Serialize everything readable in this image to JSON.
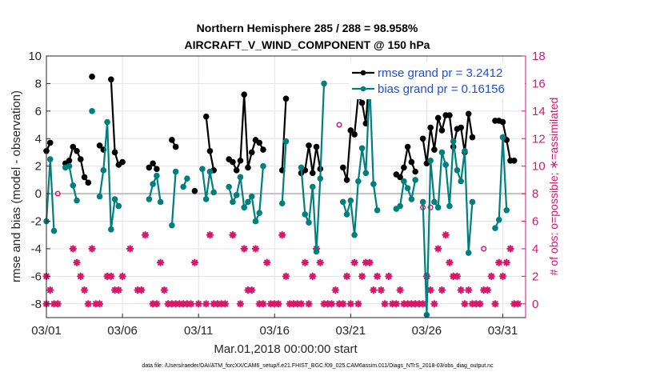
{
  "chart_data": {
    "type": "line",
    "title_line1": "Northern Hemisphere 285 / 288 = 98.958%",
    "title_line2": "AIRCRAFT_V_WIND_COMPONENT @ 150 hPa",
    "xlabel": "Mar.01,2018 00:00:00 start",
    "ylabel_left": "rmse and bias (model - observation)",
    "ylabel_right": "# of obs: o=possible; ∗=assimilated",
    "footer": "data file: /Users/raeder/DAI/ATM_forcXX/CAM6_setup/f.e21.FHIST_BGC.f09_025.CAM6assim.011/Diags_NTrS_2018-03/obs_diag_output.nc",
    "xlim": [
      1,
      32.5
    ],
    "ylim_left": [
      -9,
      10
    ],
    "ylim_right": [
      -1,
      18
    ],
    "xticks": [
      1,
      6,
      11,
      16,
      21,
      26,
      31
    ],
    "xtick_labels": [
      "03/01",
      "03/06",
      "03/11",
      "03/16",
      "03/21",
      "03/26",
      "03/31"
    ],
    "yticks_left": [
      -8,
      -6,
      -4,
      -2,
      0,
      2,
      4,
      6,
      8,
      10
    ],
    "yticks_right": [
      0,
      2,
      4,
      6,
      8,
      10,
      12,
      14,
      16,
      18
    ],
    "grid": true,
    "legend_placement": "top-right",
    "colors": {
      "rmse": "#000000",
      "bias": "#007f7f",
      "obs": "#d6186b",
      "zero_line": "#c0c0c0"
    },
    "series": [
      {
        "name": "rmse grand pr = 3.2412",
        "axis": "left",
        "segments": [
          [
            [
              1.0,
              3.1
            ],
            [
              1.25,
              3.7
            ]
          ],
          [
            [
              2.25,
              2.2
            ],
            [
              2.5,
              2.4
            ],
            [
              2.75,
              3.4
            ],
            [
              3.0,
              3.1
            ],
            [
              3.25,
              2.5
            ],
            [
              3.5,
              1.2
            ],
            [
              3.75,
              0.8
            ]
          ],
          [
            [
              4.0,
              8.5
            ]
          ],
          [
            [
              4.5,
              3.5
            ],
            [
              4.75,
              3.2
            ]
          ],
          [
            [
              5.25,
              8.3
            ],
            [
              5.5,
              3.0
            ],
            [
              5.75,
              2.1
            ],
            [
              6.0,
              2.3
            ]
          ],
          [
            [
              7.75,
              1.9
            ],
            [
              8.0,
              2.2
            ],
            [
              8.25,
              1.8
            ]
          ],
          [
            [
              9.25,
              3.9
            ],
            [
              9.5,
              3.4
            ]
          ],
          [
            [
              10.75,
              0.2
            ]
          ],
          [
            [
              11.5,
              5.6
            ],
            [
              11.75,
              3.1
            ],
            [
              12.0,
              1.7
            ]
          ],
          [
            [
              13.0,
              2.5
            ],
            [
              13.25,
              2.3
            ],
            [
              13.5,
              1.7
            ],
            [
              13.75,
              2.4
            ],
            [
              14.0,
              7.2
            ],
            [
              14.25,
              1.9
            ],
            [
              14.5,
              3.0
            ],
            [
              14.75,
              3.9
            ],
            [
              15.0,
              3.7
            ],
            [
              15.25,
              3.2
            ]
          ],
          [
            [
              16.5,
              1.7
            ],
            [
              16.75,
              6.9
            ]
          ],
          [
            [
              17.75,
              1.5
            ],
            [
              18.0,
              1.7
            ],
            [
              18.25,
              3.5
            ],
            [
              18.5,
              1.5
            ],
            [
              18.75,
              3.4
            ],
            [
              19.0,
              1.8
            ]
          ],
          [
            [
              20.5,
              1.9
            ],
            [
              20.75,
              1.0
            ],
            [
              21.0,
              4.6
            ],
            [
              21.25,
              4.3
            ],
            [
              21.5,
              7.1
            ],
            [
              21.75,
              6.6
            ],
            [
              22.0,
              5.1
            ],
            [
              22.25,
              9.0
            ],
            [
              22.5,
              7.5
            ],
            [
              22.75,
              7.2
            ]
          ],
          [
            [
              24.0,
              1.4
            ],
            [
              24.25,
              1.2
            ],
            [
              24.5,
              1.9
            ],
            [
              24.75,
              3.4
            ],
            [
              25.0,
              2.3
            ],
            [
              25.25,
              1.6
            ]
          ],
          [
            [
              25.75,
              4.0
            ],
            [
              26.0,
              2.2
            ],
            [
              26.25,
              4.8
            ],
            [
              26.5,
              3.2
            ],
            [
              26.75,
              5.5
            ],
            [
              27.0,
              4.6
            ],
            [
              27.25,
              5.7
            ],
            [
              27.5,
              5.7
            ],
            [
              27.75,
              3.4
            ],
            [
              28.0,
              4.7
            ],
            [
              28.25,
              4.8
            ],
            [
              28.5,
              3.0
            ],
            [
              28.75,
              5.8
            ],
            [
              29.0,
              4.1
            ]
          ],
          [
            [
              30.5,
              5.3
            ],
            [
              30.75,
              5.3
            ],
            [
              31.0,
              5.2
            ],
            [
              31.25,
              3.9
            ],
            [
              31.5,
              2.4
            ],
            [
              31.75,
              2.4
            ]
          ]
        ]
      },
      {
        "name": "bias grand pr = 0.16156",
        "axis": "left",
        "segments": [
          [
            [
              1.0,
              -2.0
            ],
            [
              1.25,
              2.5
            ],
            [
              1.5,
              -2.7
            ]
          ],
          [
            [
              2.25,
              1.9
            ],
            [
              2.5,
              2.0
            ],
            [
              2.75,
              0.6
            ],
            [
              3.0,
              -0.5
            ]
          ],
          [
            [
              4.0,
              6.0
            ]
          ],
          [
            [
              4.5,
              -0.2
            ],
            [
              4.75,
              1.7
            ],
            [
              5.0,
              5.2
            ],
            [
              5.25,
              -2.6
            ],
            [
              5.5,
              -0.4
            ],
            [
              5.75,
              -0.9
            ]
          ],
          [
            [
              7.75,
              -0.4
            ],
            [
              8.0,
              0.7
            ],
            [
              8.25,
              1.3
            ],
            [
              8.5,
              -0.6
            ]
          ],
          [
            [
              9.25,
              -2.3
            ],
            [
              9.5,
              1.6
            ]
          ],
          [
            [
              10.0,
              0.5
            ],
            [
              10.25,
              1.1
            ]
          ],
          [
            [
              11.25,
              1.8
            ],
            [
              11.5,
              -0.4
            ],
            [
              11.75,
              1.6
            ],
            [
              12.0,
              0.1
            ]
          ],
          [
            [
              13.0,
              0.5
            ],
            [
              13.25,
              -0.6
            ],
            [
              13.5,
              -0.1
            ],
            [
              13.75,
              1.2
            ],
            [
              14.0,
              -1.0
            ],
            [
              14.25,
              -0.6
            ],
            [
              14.5,
              -0.2
            ],
            [
              14.75,
              -2.0
            ],
            [
              15.0,
              -1.4
            ],
            [
              15.25,
              2.0
            ]
          ],
          [
            [
              16.5,
              -0.7
            ],
            [
              16.75,
              3.8
            ]
          ],
          [
            [
              17.75,
              1.9
            ],
            [
              18.0,
              -1.5
            ],
            [
              18.25,
              -2.1
            ],
            [
              18.5,
              0.5
            ],
            [
              18.75,
              -4.2
            ],
            [
              19.0,
              1.1
            ],
            [
              19.25,
              8.0
            ]
          ],
          [
            [
              20.5,
              -0.6
            ],
            [
              20.75,
              -1.5
            ],
            [
              21.0,
              -0.5
            ],
            [
              21.25,
              -3.0
            ],
            [
              21.5,
              0.9
            ],
            [
              21.75,
              3.3
            ],
            [
              22.0,
              1.5
            ],
            [
              22.25,
              8.0
            ],
            [
              22.5,
              0.7
            ],
            [
              22.75,
              -1.2
            ]
          ],
          [
            [
              24.0,
              -1.1
            ],
            [
              24.25,
              -0.9
            ],
            [
              24.5,
              0.9
            ],
            [
              24.75,
              0.4
            ],
            [
              25.0,
              -0.4
            ],
            [
              25.25,
              1.0
            ]
          ],
          [
            [
              25.75,
              -0.6
            ],
            [
              26.0,
              -8.8
            ],
            [
              26.25,
              2.4
            ],
            [
              26.5,
              -0.6
            ],
            [
              26.75,
              -1.0
            ],
            [
              27.0,
              3.0
            ],
            [
              27.25,
              2.1
            ],
            [
              27.5,
              -0.9
            ],
            [
              27.75,
              3.8
            ],
            [
              28.0,
              1.7
            ],
            [
              28.25,
              0.9
            ],
            [
              28.5,
              3.1
            ],
            [
              28.75,
              -4.3
            ],
            [
              29.0,
              -0.6
            ]
          ],
          [
            [
              30.5,
              -2.5
            ],
            [
              30.75,
              -1.9
            ],
            [
              31.0,
              4.1
            ],
            [
              31.25,
              -1.2
            ]
          ]
        ]
      }
    ],
    "obs_assimilated": [
      [
        1.0,
        0
      ],
      [
        1.0,
        2
      ],
      [
        1.25,
        1
      ],
      [
        1.5,
        0
      ],
      [
        1.75,
        0
      ],
      [
        2.75,
        4
      ],
      [
        3.0,
        3
      ],
      [
        3.25,
        2
      ],
      [
        3.5,
        1
      ],
      [
        3.75,
        0
      ],
      [
        4.0,
        4
      ],
      [
        4.25,
        0
      ],
      [
        4.5,
        0
      ],
      [
        5.0,
        2
      ],
      [
        5.25,
        2
      ],
      [
        5.5,
        1
      ],
      [
        5.75,
        1
      ],
      [
        6.0,
        2
      ],
      [
        6.5,
        4
      ],
      [
        7.0,
        1
      ],
      [
        7.25,
        1
      ],
      [
        7.5,
        5
      ],
      [
        8.0,
        0
      ],
      [
        8.25,
        0
      ],
      [
        8.5,
        3
      ],
      [
        8.75,
        1
      ],
      [
        9.0,
        0
      ],
      [
        9.25,
        0
      ],
      [
        9.5,
        0
      ],
      [
        9.75,
        0
      ],
      [
        10.0,
        0
      ],
      [
        10.25,
        0
      ],
      [
        10.5,
        0
      ],
      [
        10.75,
        3
      ],
      [
        11.0,
        0
      ],
      [
        11.5,
        0
      ],
      [
        11.75,
        5
      ],
      [
        12.0,
        0
      ],
      [
        12.25,
        0
      ],
      [
        12.5,
        0
      ],
      [
        12.75,
        0
      ],
      [
        13.25,
        5
      ],
      [
        13.75,
        0
      ],
      [
        14.0,
        4
      ],
      [
        14.25,
        1
      ],
      [
        14.5,
        1
      ],
      [
        14.75,
        4
      ],
      [
        15.0,
        0
      ],
      [
        15.25,
        0
      ],
      [
        15.5,
        3
      ],
      [
        15.75,
        0
      ],
      [
        16.0,
        0
      ],
      [
        16.25,
        0
      ],
      [
        16.5,
        5
      ],
      [
        16.75,
        2
      ],
      [
        17.0,
        0
      ],
      [
        17.25,
        0
      ],
      [
        17.5,
        0
      ],
      [
        17.75,
        0
      ],
      [
        18.0,
        3
      ],
      [
        18.25,
        0
      ],
      [
        18.5,
        2
      ],
      [
        18.75,
        4
      ],
      [
        19.0,
        3
      ],
      [
        19.25,
        0
      ],
      [
        19.5,
        0
      ],
      [
        19.75,
        0
      ],
      [
        20.0,
        1
      ],
      [
        20.25,
        0
      ],
      [
        20.5,
        0
      ],
      [
        20.75,
        2
      ],
      [
        21.0,
        0
      ],
      [
        21.25,
        3
      ],
      [
        21.5,
        0
      ],
      [
        21.75,
        2
      ],
      [
        22.0,
        3
      ],
      [
        22.25,
        3
      ],
      [
        22.5,
        1
      ],
      [
        22.75,
        2
      ],
      [
        23.0,
        1
      ],
      [
        23.25,
        0
      ],
      [
        23.5,
        2
      ],
      [
        23.75,
        0
      ],
      [
        24.0,
        0
      ],
      [
        24.25,
        1
      ],
      [
        24.5,
        0
      ],
      [
        24.75,
        0
      ],
      [
        25.0,
        0
      ],
      [
        25.25,
        0
      ],
      [
        25.5,
        0
      ],
      [
        25.75,
        0
      ],
      [
        26.0,
        2
      ],
      [
        26.25,
        1
      ],
      [
        26.5,
        0
      ],
      [
        26.75,
        4
      ],
      [
        27.0,
        1
      ],
      [
        27.25,
        5
      ],
      [
        27.5,
        3
      ],
      [
        27.75,
        2
      ],
      [
        28.0,
        2
      ],
      [
        28.25,
        1
      ],
      [
        28.5,
        0
      ],
      [
        28.75,
        1
      ],
      [
        29.0,
        0
      ],
      [
        29.25,
        0
      ],
      [
        29.5,
        0
      ],
      [
        29.75,
        1
      ],
      [
        30.0,
        1
      ],
      [
        30.25,
        2
      ],
      [
        30.5,
        0
      ],
      [
        30.75,
        3
      ],
      [
        31.0,
        2
      ],
      [
        31.25,
        3
      ],
      [
        31.5,
        4
      ],
      [
        31.75,
        0
      ],
      [
        32.0,
        0
      ]
    ],
    "obs_possible": [
      [
        1.75,
        8
      ],
      [
        20.25,
        13
      ],
      [
        25.75,
        7
      ],
      [
        26.25,
        7
      ],
      [
        29.75,
        4
      ]
    ]
  }
}
